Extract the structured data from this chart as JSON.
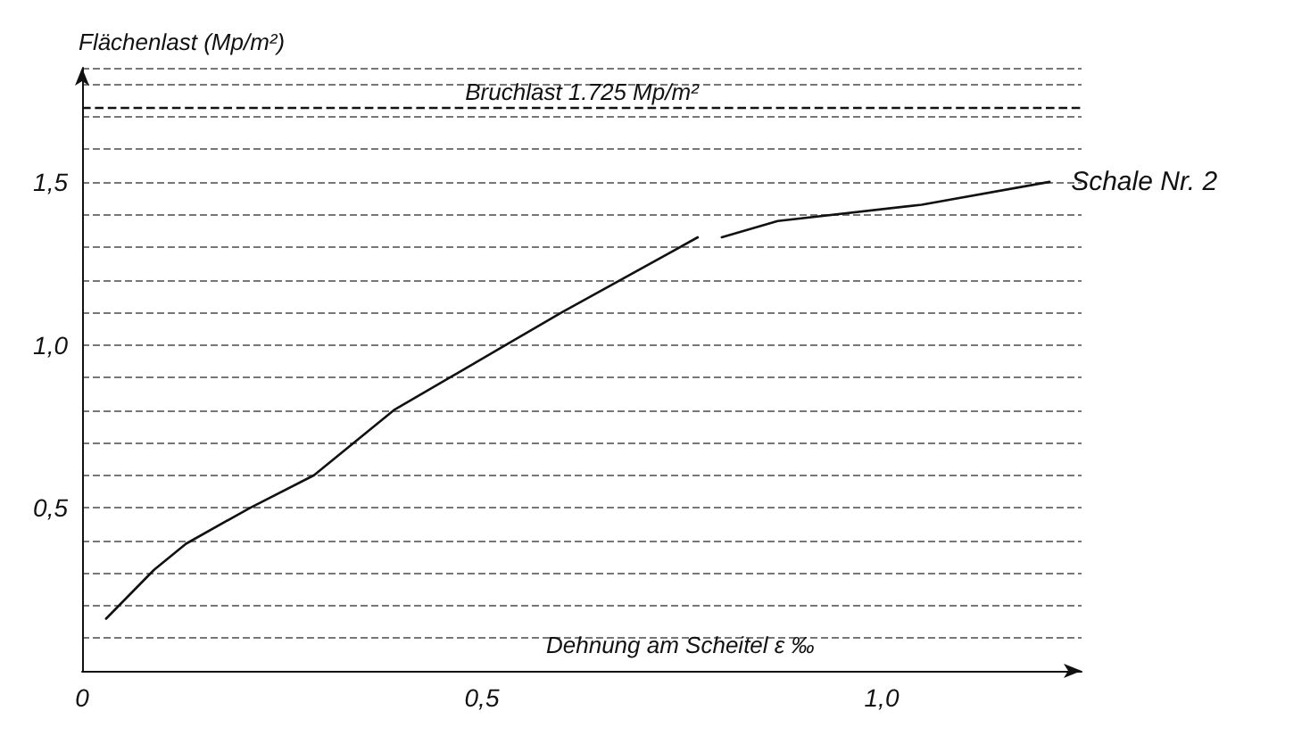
{
  "chart_data": {
    "type": "line",
    "xlabel": "Dehnung am Scheitel ε ‰",
    "ylabel": "Flächenlast (Mp/m²)",
    "series": [
      {
        "name": "Schale Nr. 2",
        "color": "#111111",
        "x": [
          0.03,
          0.09,
          0.13,
          0.21,
          0.29,
          0.39,
          0.53,
          0.6,
          0.77,
          0.785,
          0.8,
          0.87,
          1.05,
          1.21
        ],
        "values": [
          0.16,
          0.31,
          0.39,
          0.5,
          0.6,
          0.8,
          1.0,
          1.1,
          1.33,
          null,
          1.33,
          1.38,
          1.43,
          1.5
        ]
      }
    ],
    "xlim": [
      0,
      1.25
    ],
    "ylim": [
      0,
      1.85
    ],
    "xticks": [
      {
        "value": 0,
        "label": "0"
      },
      {
        "value": 0.5,
        "label": "0,5"
      },
      {
        "value": 1.0,
        "label": "1,0"
      }
    ],
    "yticks": [
      {
        "value": 0.1,
        "label": null
      },
      {
        "value": 0.2,
        "label": null
      },
      {
        "value": 0.3,
        "label": null
      },
      {
        "value": 0.4,
        "label": null
      },
      {
        "value": 0.5,
        "label": "0,5"
      },
      {
        "value": 0.6,
        "label": null
      },
      {
        "value": 0.7,
        "label": null
      },
      {
        "value": 0.8,
        "label": null
      },
      {
        "value": 0.9,
        "label": null
      },
      {
        "value": 1.0,
        "label": "1,0"
      },
      {
        "value": 1.1,
        "label": null
      },
      {
        "value": 1.2,
        "label": null
      },
      {
        "value": 1.3,
        "label": null
      },
      {
        "value": 1.4,
        "label": null
      },
      {
        "value": 1.5,
        "label": "1,5"
      },
      {
        "value": 1.6,
        "label": null
      },
      {
        "value": 1.7,
        "label": null
      },
      {
        "value": 1.8,
        "label": null
      }
    ],
    "ref_lines": [
      {
        "axis": "y",
        "value": 1.725,
        "label": "Bruchlast 1.725 Mp/m²",
        "line_style": "dashed"
      }
    ],
    "grid": "y",
    "legend": false,
    "marker": "none",
    "line_style": "solid"
  }
}
